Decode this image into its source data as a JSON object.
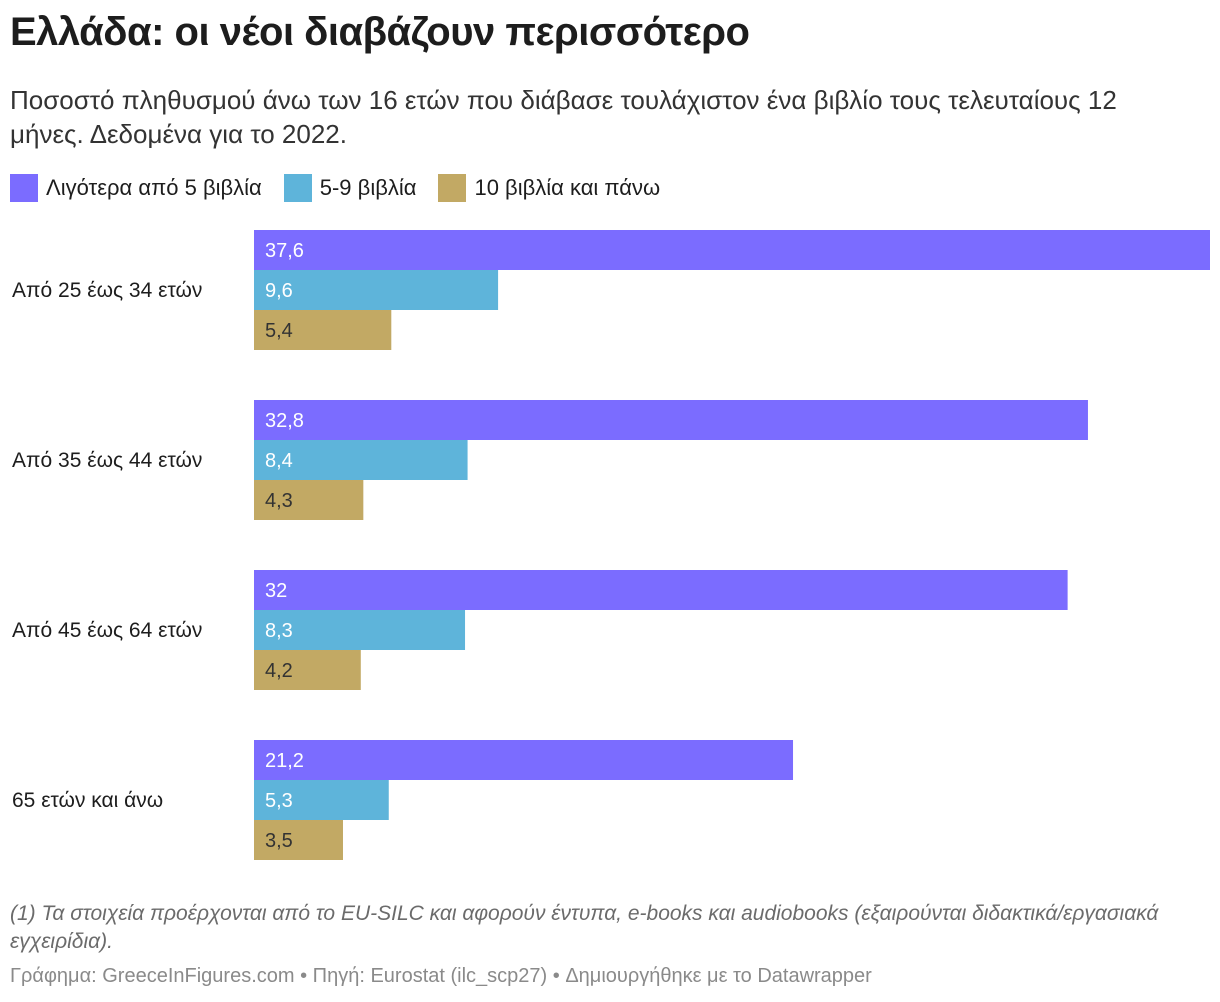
{
  "title": "Ελλάδα: οι νέοι διαβάζουν περισσότερο",
  "subtitle": "Ποσοστό πληθυσμού άνω των 16 ετών που διάβασε τουλάχιστον ένα βιβλίο τους τελευταίους 12 μήνες. Δεδομένα για το 2022.",
  "note": "(1) Τα στοιχεία προέρχονται από το EU-SILC και αφορούν έντυπα, e-books και audiobooks (εξαιρούνται διδακτικά/εργασιακά εγχειρίδια).",
  "source": "Γράφημα: GreeceInFigures.com • Πηγή: Eurostat (ilc_scp27) • Δημιουργήθηκε με το Datawrapper",
  "chart_data": {
    "type": "bar",
    "orientation": "horizontal",
    "categories": [
      "Από 25 έως 34 ετών",
      "Από 35 έως 44 ετών",
      "Από 45 έως 64 ετών",
      "65 ετών και άνω"
    ],
    "series": [
      {
        "name": "Λιγότερα από 5 βιβλία",
        "color": "#7b6cff",
        "values": [
          37.6,
          32.8,
          32,
          21.2
        ],
        "labels": [
          "37,6",
          "32,8",
          "32",
          "21,2"
        ]
      },
      {
        "name": "5-9 βιβλία",
        "color": "#5eb4da",
        "values": [
          9.6,
          8.4,
          8.3,
          5.3
        ],
        "labels": [
          "9,6",
          "8,4",
          "8,3",
          "5,3"
        ]
      },
      {
        "name": "10 βιβλία και πάνω",
        "color": "#c2a964",
        "values": [
          5.4,
          4.3,
          4.2,
          3.5
        ],
        "labels": [
          "5,4",
          "4,3",
          "4,2",
          "3,5"
        ]
      }
    ],
    "xlim": [
      0,
      37.6
    ],
    "legend": "top-left",
    "grid": false
  }
}
